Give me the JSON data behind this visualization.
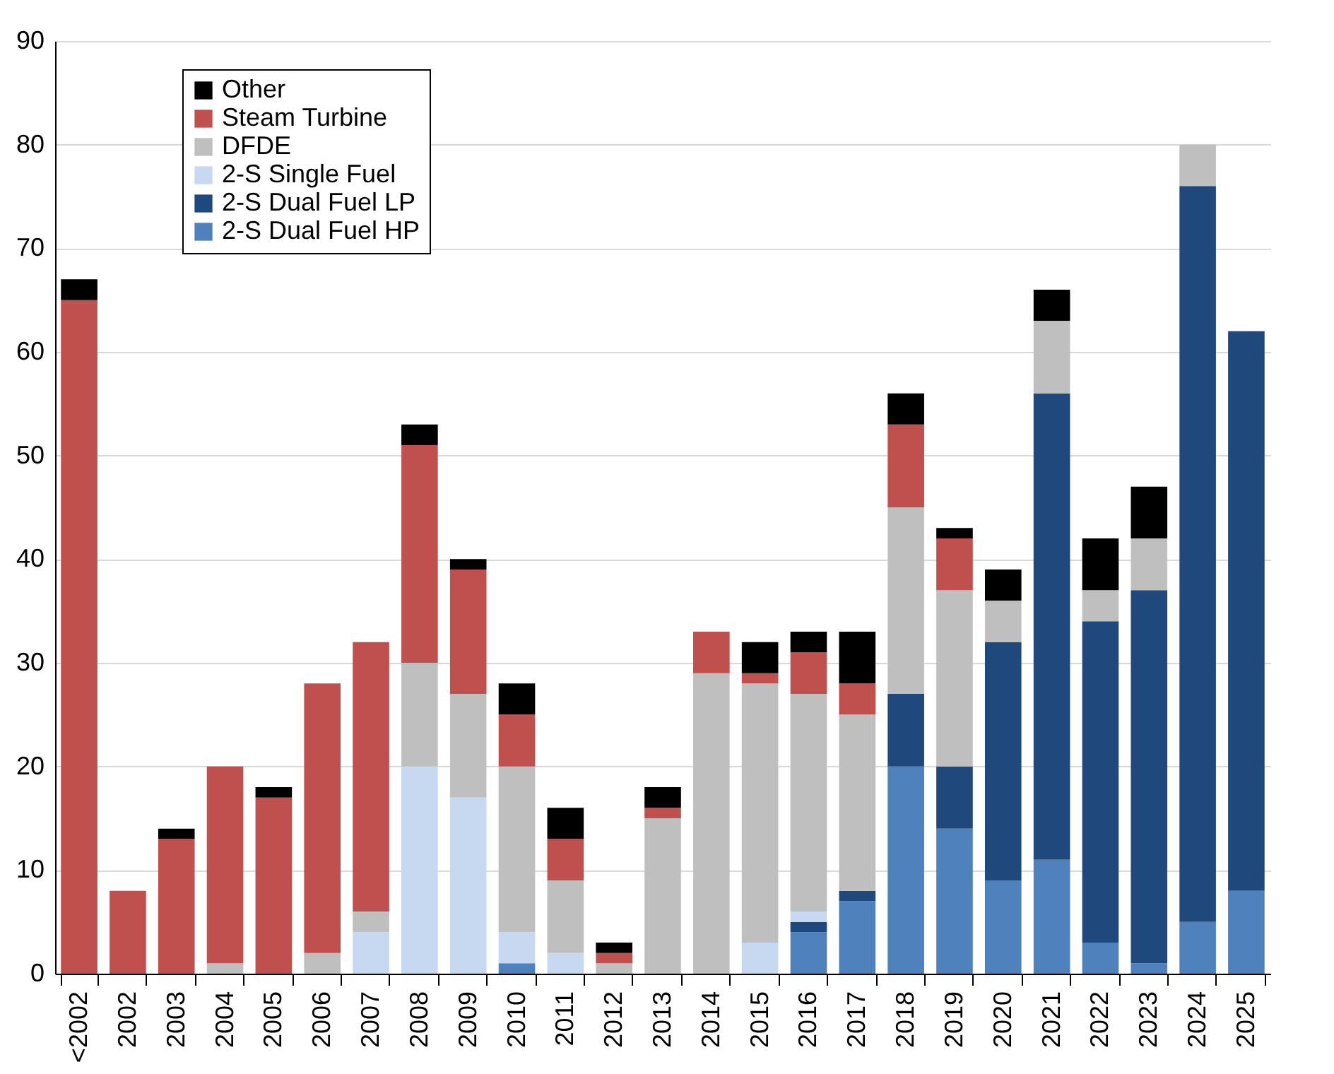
{
  "chart_data": {
    "type": "bar",
    "stacked": true,
    "categories": [
      "<2002",
      "2002",
      "2003",
      "2004",
      "2005",
      "2006",
      "2007",
      "2008",
      "2009",
      "2010",
      "2011",
      "2012",
      "2013",
      "2014",
      "2015",
      "2016",
      "2017",
      "2018",
      "2019",
      "2020",
      "2021",
      "2022",
      "2023",
      "2024",
      "2025"
    ],
    "series": [
      {
        "name": "2-S Dual Fuel HP",
        "color": "#4f81bd",
        "values": [
          0,
          0,
          0,
          0,
          0,
          0,
          0,
          0,
          0,
          1,
          0,
          0,
          0,
          0,
          0,
          4,
          7,
          20,
          14,
          9,
          11,
          3,
          1,
          5,
          8
        ]
      },
      {
        "name": "2-S Dual Fuel LP",
        "color": "#1f497d",
        "values": [
          0,
          0,
          0,
          0,
          0,
          0,
          0,
          0,
          0,
          0,
          0,
          0,
          0,
          0,
          0,
          1,
          1,
          7,
          6,
          23,
          45,
          31,
          36,
          71,
          54
        ]
      },
      {
        "name": "2-S Single Fuel",
        "color": "#c6d9f1",
        "values": [
          0,
          0,
          0,
          0,
          0,
          0,
          4,
          20,
          17,
          3,
          2,
          0,
          0,
          0,
          3,
          1,
          0,
          0,
          0,
          0,
          0,
          0,
          0,
          0,
          0
        ]
      },
      {
        "name": "DFDE",
        "color": "#bfbfbf",
        "values": [
          0,
          0,
          0,
          1,
          0,
          2,
          2,
          10,
          10,
          16,
          7,
          1,
          15,
          29,
          25,
          21,
          17,
          18,
          17,
          4,
          7,
          3,
          5,
          4,
          0
        ]
      },
      {
        "name": "Steam Turbine",
        "color": "#c0504d",
        "values": [
          65,
          8,
          13,
          19,
          17,
          26,
          26,
          21,
          12,
          5,
          4,
          1,
          1,
          4,
          1,
          4,
          3,
          8,
          5,
          0,
          0,
          0,
          0,
          0,
          0
        ]
      },
      {
        "name": "Other",
        "color": "#000000",
        "values": [
          2,
          0,
          1,
          0,
          1,
          0,
          0,
          2,
          1,
          3,
          3,
          1,
          2,
          0,
          3,
          2,
          5,
          3,
          1,
          3,
          3,
          5,
          5,
          0,
          0
        ]
      }
    ],
    "ylim": [
      0,
      90
    ],
    "yticks": [
      0,
      10,
      20,
      30,
      40,
      50,
      60,
      70,
      80,
      90
    ],
    "grid": "y",
    "legend": "top left"
  }
}
